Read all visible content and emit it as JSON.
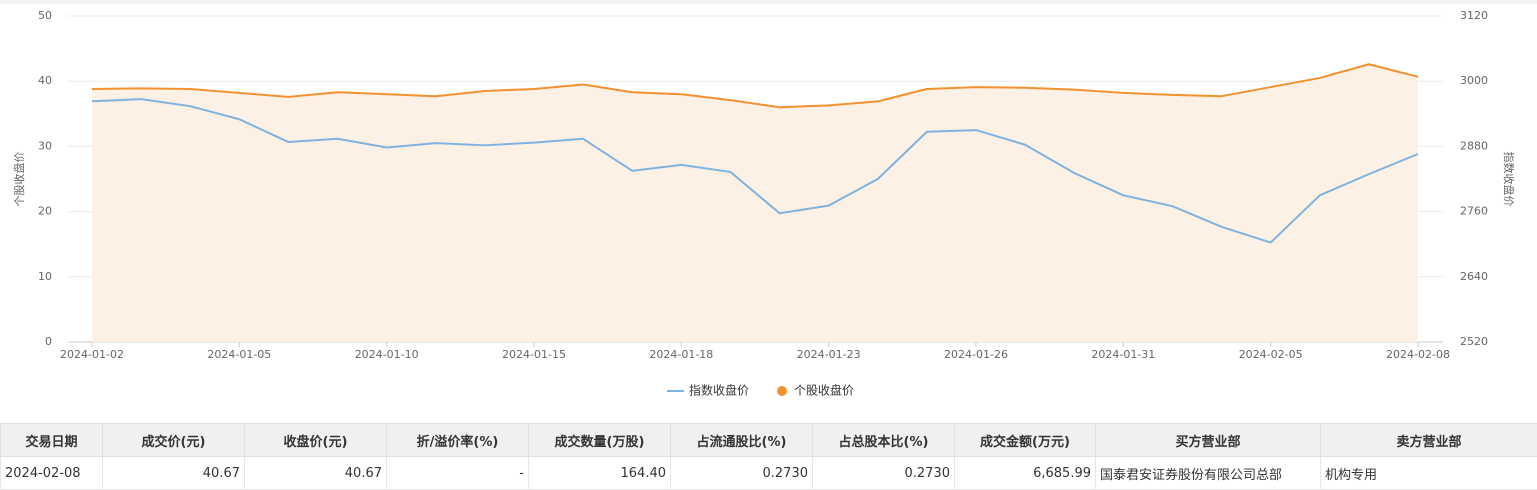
{
  "chart_data": {
    "type": "line",
    "y_label": "个股收盘价",
    "y2_label": "指数收盘价",
    "categories": [
      "2024-01-02",
      null,
      null,
      "2024-01-05",
      null,
      null,
      "2024-01-10",
      null,
      null,
      "2024-01-15",
      null,
      null,
      "2024-01-18",
      null,
      null,
      "2024-01-23",
      null,
      null,
      "2024-01-26",
      null,
      null,
      "2024-01-31",
      null,
      null,
      "2024-02-05",
      null,
      null,
      "2024-02-08"
    ],
    "series": [
      {
        "name": "指数收盘价",
        "color": "#7eb3df",
        "axis": "y2",
        "values": [
          2963,
          2967,
          2954,
          2930,
          2888,
          2894,
          2878,
          2886,
          2882,
          2887,
          2894,
          2835,
          2846,
          2833,
          2757,
          2771,
          2820,
          2907,
          2910,
          2883,
          2831,
          2790,
          2770,
          2732,
          2703,
          2790,
          2829,
          2866
        ]
      },
      {
        "name": "个股收盘价",
        "color": "#f39130",
        "area_color": "#fdf0e5",
        "values": [
          38.8,
          38.9,
          38.8,
          38.2,
          37.6,
          38.3,
          38.0,
          37.7,
          38.5,
          38.8,
          39.5,
          38.3,
          38.0,
          37.1,
          36.0,
          36.3,
          36.9,
          38.8,
          39.1,
          39.0,
          38.7,
          38.2,
          37.9,
          37.7,
          39.1,
          40.5,
          42.6,
          40.67
        ]
      }
    ],
    "ylim": [
      0,
      50
    ],
    "yticks": [
      0,
      10,
      20,
      30,
      40,
      50
    ],
    "y2lim": [
      2520,
      3120
    ],
    "y2ticks": [
      2520,
      2640,
      2760,
      2880,
      3000,
      3120
    ],
    "grid": true
  },
  "table": {
    "headers": [
      "交易日期",
      "成交价(元)",
      "收盘价(元)",
      "折/溢价率(%)",
      "成交数量(万股)",
      "占流通股比(%)",
      "占总股本比(%)",
      "成交金额(万元)",
      "买方营业部",
      "卖方营业部"
    ],
    "rows": [
      [
        "2024-02-08",
        "40.67",
        "40.67",
        "-",
        "164.40",
        "0.2730",
        "0.2730",
        "6,685.99",
        "国泰君安证券股份有限公司总部",
        "机构专用"
      ]
    ]
  }
}
